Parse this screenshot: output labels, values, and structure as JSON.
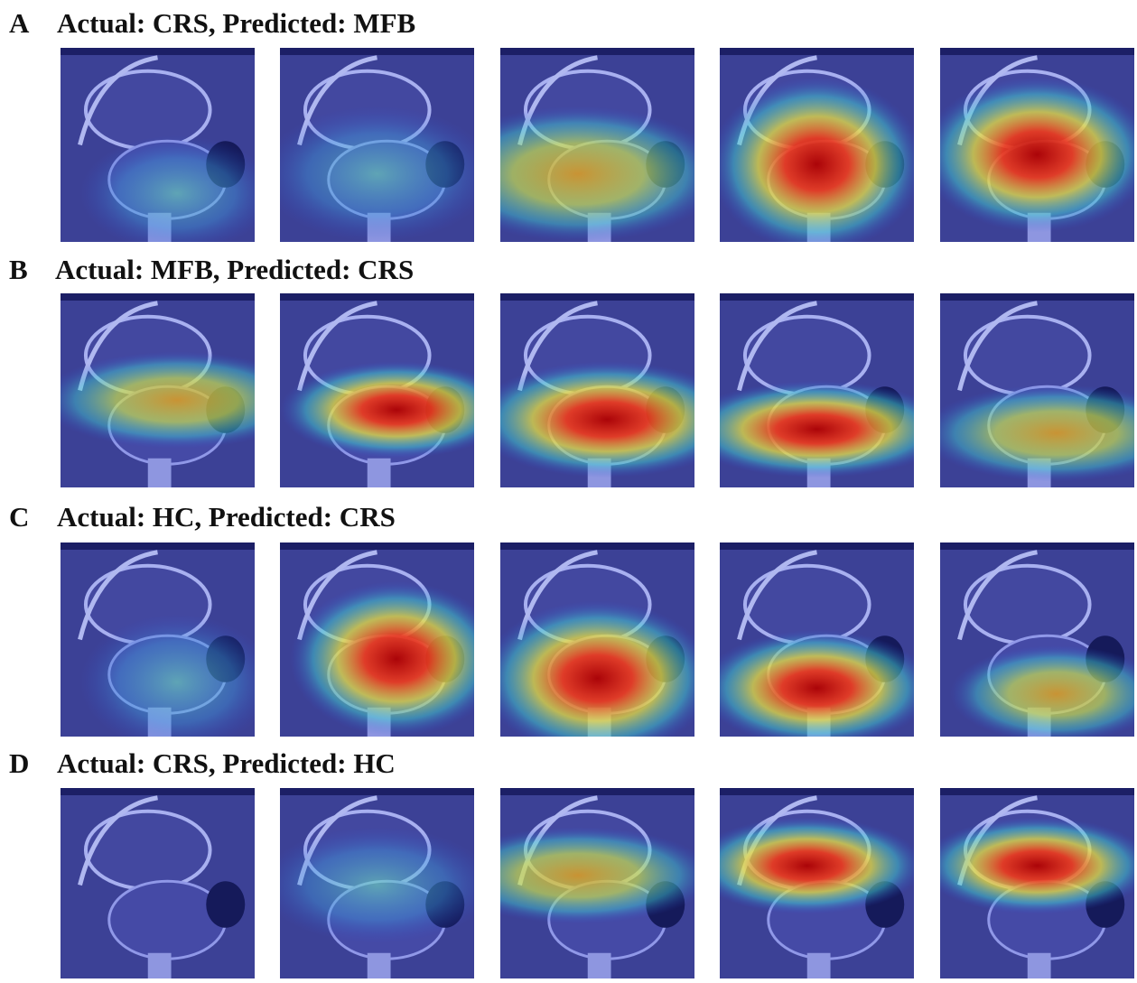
{
  "panels": [
    {
      "letter": "A",
      "title": "Actual: CRS, Predicted: MFB"
    },
    {
      "letter": "B",
      "title": "Actual: MFB, Predicted: CRS"
    },
    {
      "letter": "C",
      "title": "Actual: HC, Predicted: CRS"
    },
    {
      "letter": "D",
      "title": "Actual: CRS, Predicted: HC"
    }
  ]
}
